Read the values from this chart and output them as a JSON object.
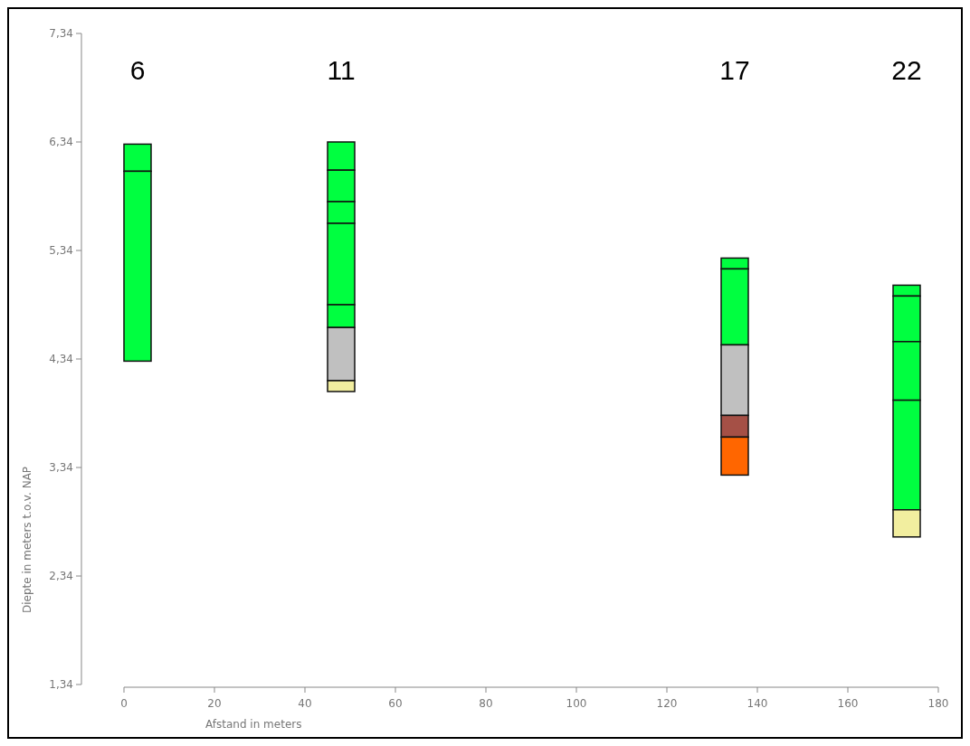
{
  "chart_data": {
    "type": "bar",
    "xlabel": "Afstand in meters",
    "ylabel": "Diepte in meters t.o.v. NAP",
    "xlim": [
      0,
      180
    ],
    "xticks": [
      0,
      20,
      40,
      60,
      80,
      100,
      120,
      140,
      160,
      180
    ],
    "ylim": [
      1.34,
      7.34
    ],
    "yticks": [
      {
        "value": 1.34,
        "label": "1,34"
      },
      {
        "value": 2.34,
        "label": "2,34"
      },
      {
        "value": 3.34,
        "label": "3,34"
      },
      {
        "value": 4.34,
        "label": "4,34"
      },
      {
        "value": 5.34,
        "label": "5,34"
      },
      {
        "value": 6.34,
        "label": "6,34"
      },
      {
        "value": 7.34,
        "label": "7,34"
      }
    ],
    "grid": false,
    "annotations": [
      "6",
      "11",
      "17",
      "22"
    ],
    "x": [
      3,
      48,
      135,
      173
    ],
    "series": [
      {
        "base": [
          6.07,
          6.08,
          5.17,
          4.92
        ],
        "values": [
          0.25,
          0.26,
          0.1,
          0.1
        ],
        "colors": [
          "#00ff40",
          "#00ff40",
          "#00ff40",
          "#00ff40"
        ]
      },
      {
        "base": [
          4.32,
          5.79,
          4.47,
          4.5
        ],
        "values": [
          1.75,
          0.29,
          0.7,
          0.42
        ],
        "colors": [
          "#00ff40",
          "#00ff40",
          "#00ff40",
          "#00ff40"
        ]
      },
      {
        "base": [
          null,
          5.59,
          3.82,
          3.96
        ],
        "values": [
          null,
          0.2,
          0.65,
          0.54
        ],
        "colors": [
          null,
          "#00ff40",
          "#c0c0c0",
          "#00ff40"
        ]
      },
      {
        "base": [
          null,
          4.84,
          3.62,
          2.95
        ],
        "values": [
          null,
          0.75,
          0.2,
          1.01
        ],
        "colors": [
          null,
          "#00ff40",
          "#a55046",
          "#00ff40"
        ]
      },
      {
        "base": [
          null,
          4.63,
          3.27,
          2.7
        ],
        "values": [
          null,
          0.21,
          0.35,
          0.25
        ],
        "colors": [
          null,
          "#00ff40",
          "#ff6600",
          "#f2ee9f"
        ]
      },
      {
        "base": [
          null,
          4.14,
          null,
          null
        ],
        "values": [
          null,
          0.49,
          null,
          null
        ],
        "colors": [
          null,
          "#c0c0c0",
          null,
          null
        ]
      },
      {
        "base": [
          null,
          4.04,
          null,
          null
        ],
        "values": [
          null,
          0.1,
          null,
          null
        ],
        "colors": [
          null,
          "#f2ee9f",
          null,
          null
        ]
      }
    ]
  }
}
